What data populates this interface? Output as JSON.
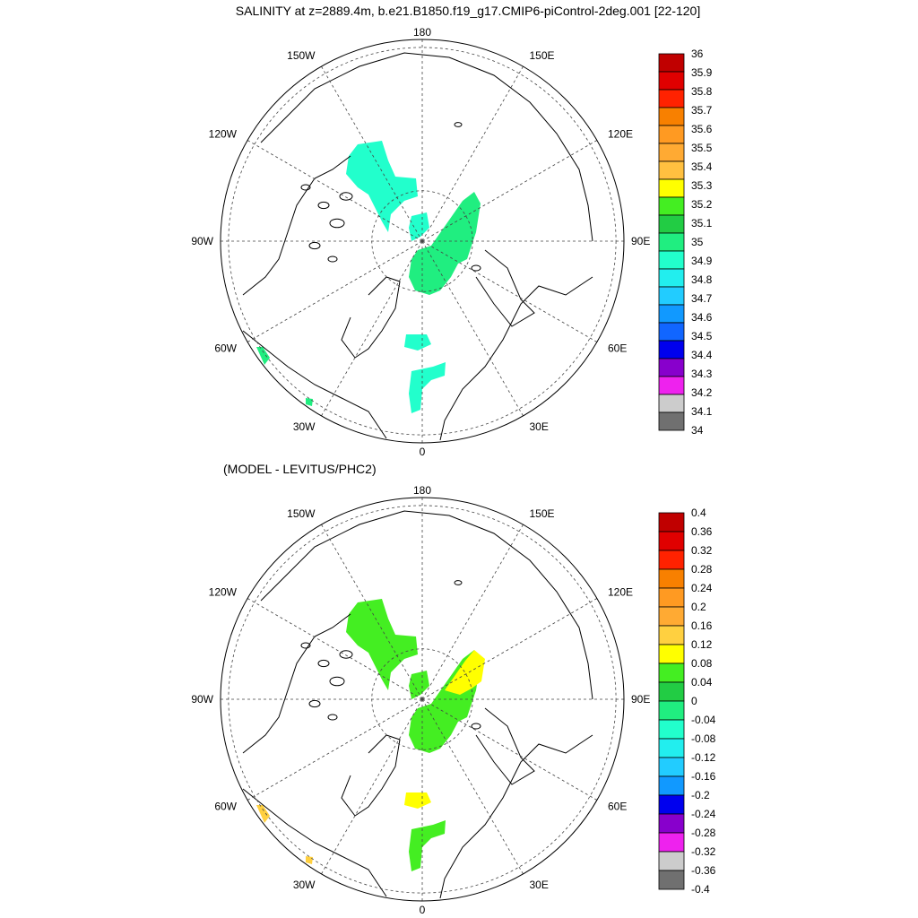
{
  "chart_data": [
    {
      "type": "heatmap",
      "projection": "north-polar-stereographic",
      "title": "SALINITY at z=2889.4m, b.e21.B1850.f19_g17.CMIP6-piControl-2deg.001 [22-120]",
      "longitude_labels": [
        "180",
        "150E",
        "120E",
        "90E",
        "60E",
        "30E",
        "0",
        "30W",
        "60W",
        "90W",
        "120W",
        "150W"
      ],
      "colorbar": {
        "labels": [
          "36",
          "35.9",
          "35.8",
          "35.7",
          "35.6",
          "35.5",
          "35.4",
          "35.3",
          "35.2",
          "35.1",
          "35",
          "34.9",
          "34.8",
          "34.7",
          "34.6",
          "34.5",
          "34.4",
          "34.3",
          "34.2",
          "34.1",
          "34"
        ],
        "colors": [
          "#c00000",
          "#e00000",
          "#ff2200",
          "#f88000",
          "#ff9a22",
          "#ffaa33",
          "#ffc040",
          "#ffff00",
          "#44ee22",
          "#22cc44",
          "#20ee80",
          "#22ffcc",
          "#22eeee",
          "#22ccff",
          "#1199ff",
          "#1166ff",
          "#0000ee",
          "#8800cc",
          "#ee22ee",
          "#cccccc",
          "#707070"
        ]
      },
      "regions": [
        {
          "name": "canada-basin-patch",
          "value_class": "34.9-35.0",
          "color": "#22ffcc"
        },
        {
          "name": "lomonosov-ridge-patch",
          "value_class": "34.9-35.0",
          "color": "#22ffcc"
        },
        {
          "name": "eurasian-basin-patch",
          "value_class": "35.0-35.1",
          "color": "#20ee80"
        },
        {
          "name": "fram-strait-patch",
          "value_class": "34.9-35.0",
          "color": "#22ffcc"
        },
        {
          "name": "nordic-seas-patch",
          "value_class": "34.9-35.0",
          "color": "#22ffcc"
        },
        {
          "name": "labrador-sea-patch",
          "value_class": "35.0-35.1",
          "color": "#20ee80"
        },
        {
          "name": "north-atlantic-patch",
          "value_class": "35.0-35.1",
          "color": "#20ee80"
        }
      ]
    },
    {
      "type": "heatmap",
      "projection": "north-polar-stereographic",
      "title": "(MODEL - LEVITUS/PHC2)",
      "longitude_labels": [
        "180",
        "150E",
        "120E",
        "90E",
        "60E",
        "30E",
        "0",
        "30W",
        "60W",
        "90W",
        "120W",
        "150W"
      ],
      "colorbar": {
        "labels": [
          "0.4",
          "0.36",
          "0.32",
          "0.28",
          "0.24",
          "0.2",
          "0.16",
          "0.12",
          "0.08",
          "0.04",
          "0",
          "-0.04",
          "-0.08",
          "-0.12",
          "-0.16",
          "-0.2",
          "-0.24",
          "-0.28",
          "-0.32",
          "-0.36",
          "-0.4"
        ],
        "colors": [
          "#c00000",
          "#e00000",
          "#ff2200",
          "#f88000",
          "#ff9a22",
          "#ffaa33",
          "#ffd040",
          "#ffff00",
          "#44ee22",
          "#22cc44",
          "#20ee80",
          "#22ffcc",
          "#22eeee",
          "#22ccff",
          "#1199ff",
          "#0000ee",
          "#8800cc",
          "#ee22ee",
          "#cccccc",
          "#707070"
        ]
      },
      "regions": [
        {
          "name": "canada-basin-patch",
          "value_class": "0.04-0.08",
          "color": "#44ee22"
        },
        {
          "name": "lomonosov-ridge-patch",
          "value_class": "0.04-0.08",
          "color": "#44ee22"
        },
        {
          "name": "eurasian-basin-patch",
          "value_class": "0.04-0.08",
          "color": "#44ee22"
        },
        {
          "name": "eurasian-basin-high-patch",
          "value_class": "0.08-0.12",
          "color": "#ffff00"
        },
        {
          "name": "fram-strait-patch",
          "value_class": "0.08-0.12",
          "color": "#ffff00"
        },
        {
          "name": "nordic-seas-patch",
          "value_class": "0.04-0.08",
          "color": "#44ee22"
        },
        {
          "name": "labrador-sea-patch",
          "value_class": "0.12-0.16",
          "color": "#ffd040"
        },
        {
          "name": "north-atlantic-patch",
          "value_class": "0.12-0.16",
          "color": "#ffd040"
        }
      ]
    }
  ]
}
